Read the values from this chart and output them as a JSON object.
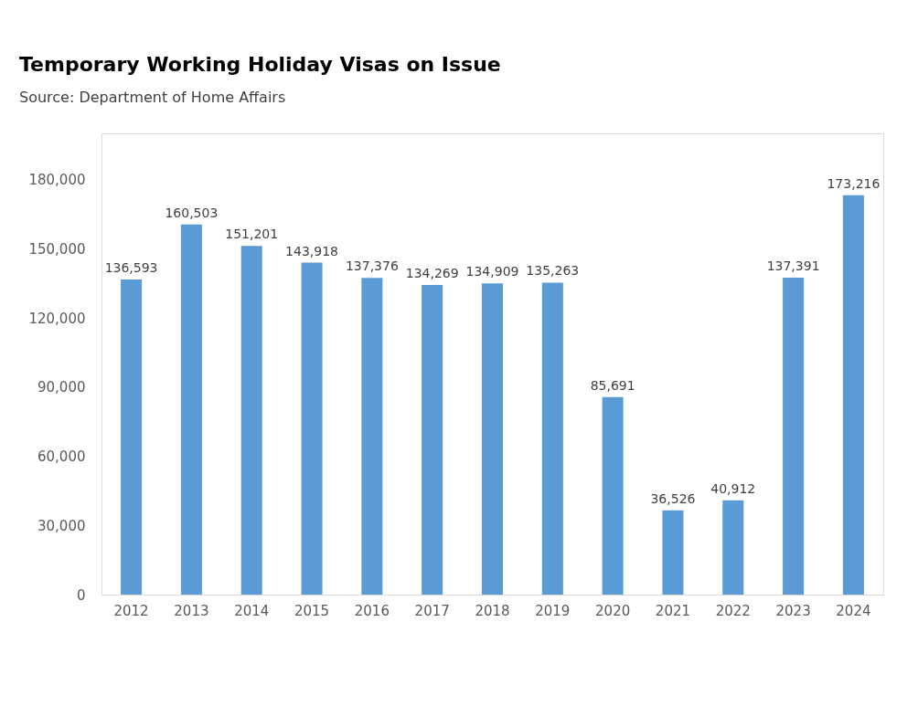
{
  "chart_data": {
    "type": "bar",
    "title": "Temporary Working Holiday Visas on Issue",
    "subtitle": "Source: Department of Home Affairs",
    "categories": [
      "2012",
      "2013",
      "2014",
      "2015",
      "2016",
      "2017",
      "2018",
      "2019",
      "2020",
      "2021",
      "2022",
      "2023",
      "2024"
    ],
    "values": [
      136593,
      160503,
      151201,
      143918,
      137376,
      134269,
      134909,
      135263,
      85691,
      36526,
      40912,
      137391,
      173216
    ],
    "color": "#5b9bd5",
    "ylim": [
      0,
      200000
    ],
    "yticks": [
      {
        "value": 0,
        "label": "0"
      },
      {
        "value": 30000,
        "label": "30,000"
      },
      {
        "value": 60000,
        "label": "60,000"
      },
      {
        "value": 90000,
        "label": "90,000"
      },
      {
        "value": 120000,
        "label": "120,000"
      },
      {
        "value": 150000,
        "label": "150,000"
      },
      {
        "value": 180000,
        "label": "180,000"
      }
    ],
    "value_labels": [
      "136,593",
      "160,503",
      "151,201",
      "143,918",
      "137,376",
      "134,269",
      "134,909",
      "135,263",
      "85,691",
      "36,526",
      "40,912",
      "137,391",
      "173,216"
    ],
    "grid": false
  }
}
